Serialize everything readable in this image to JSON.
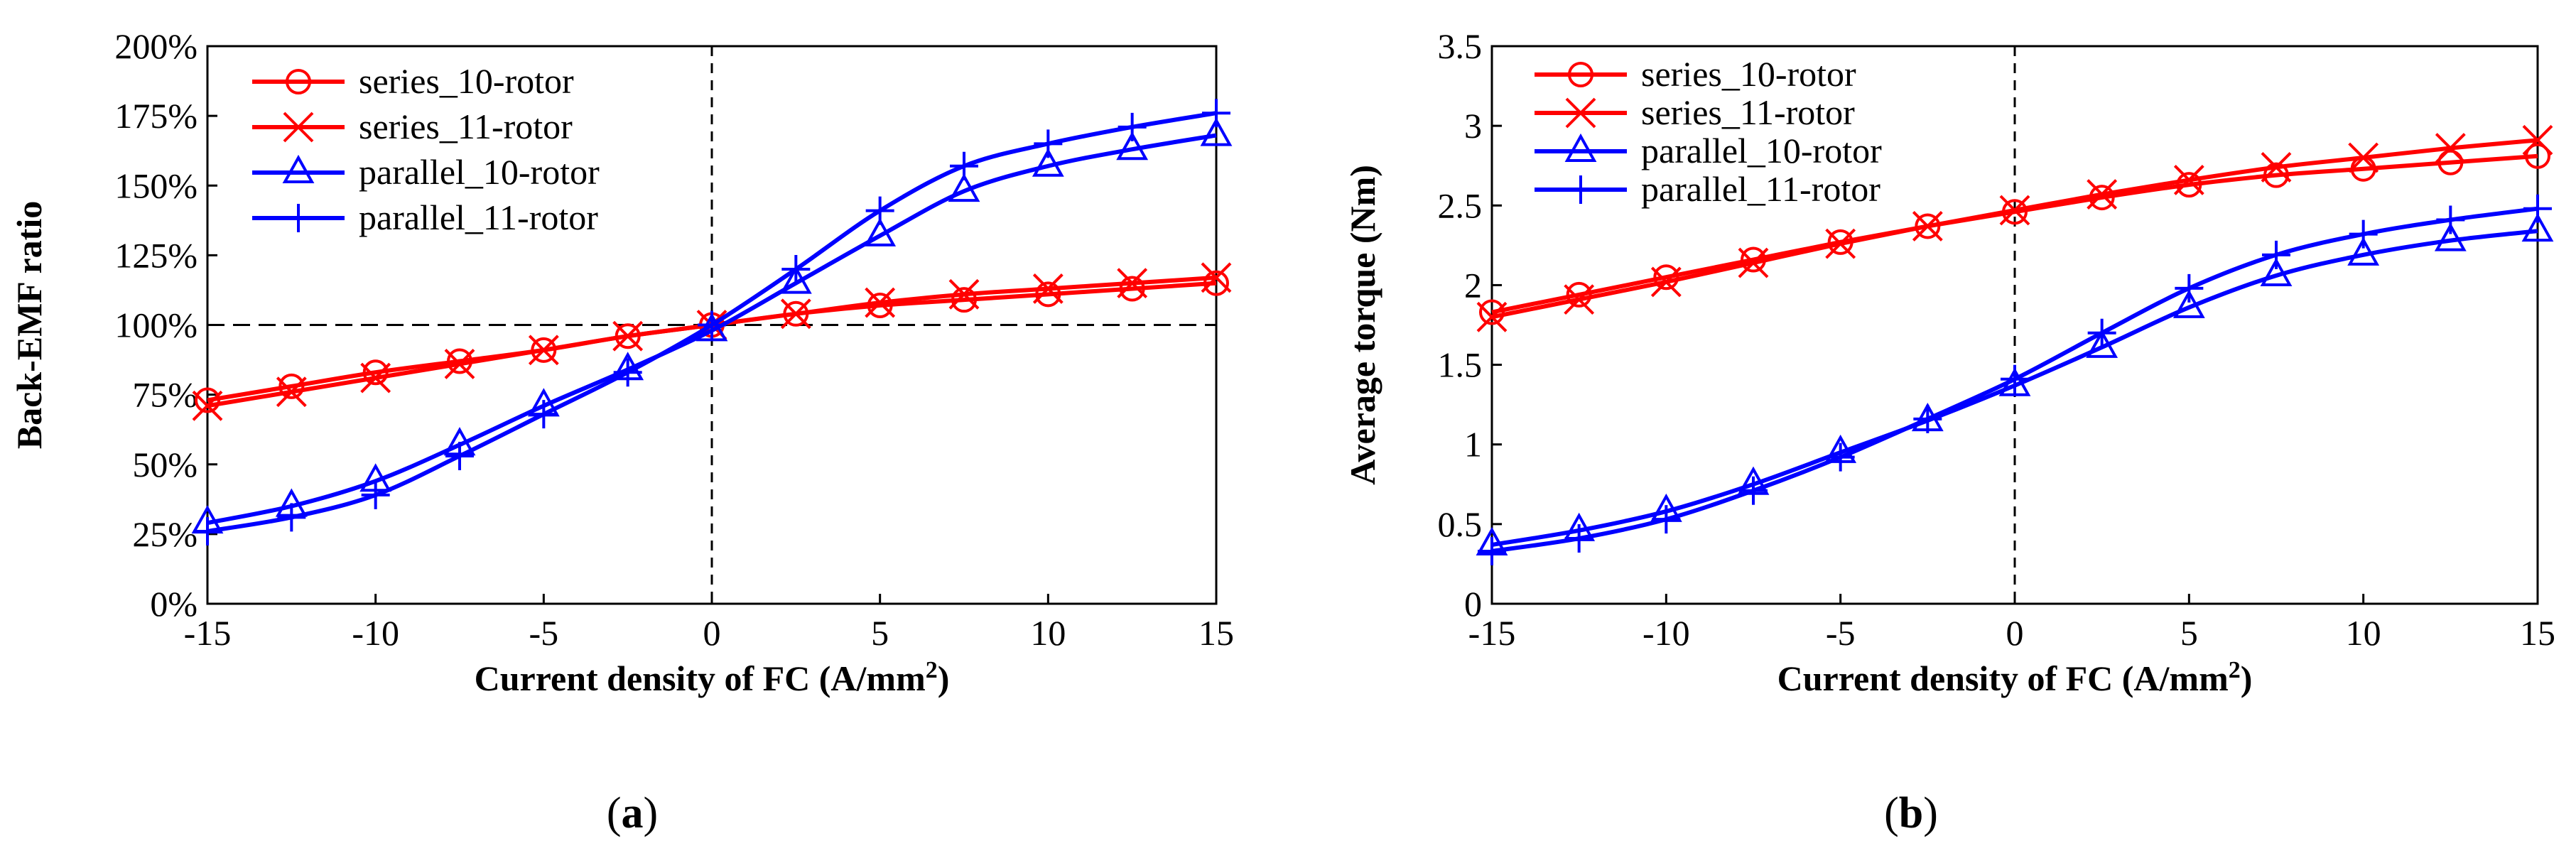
{
  "chart_data": [
    {
      "type": "line",
      "panel_label": "(a)",
      "panel_label_parts": [
        "(",
        "a",
        ")"
      ],
      "xlabel": "Current density of FC (A/mm²)",
      "ylabel": "Back-EMF ratio",
      "xlim": [
        -15,
        15
      ],
      "ylim": [
        0,
        200
      ],
      "x_ticks": [
        -15,
        -10,
        -5,
        0,
        5,
        10,
        15
      ],
      "y_ticks": [
        0,
        25,
        50,
        75,
        100,
        125,
        150,
        175,
        200
      ],
      "y_tick_labels": [
        "0%",
        "25%",
        "50%",
        "75%",
        "100%",
        "125%",
        "150%",
        "175%",
        "200%"
      ],
      "grid": false,
      "reference_lines": {
        "x": 0,
        "y": 100
      },
      "legend_position": "top-left",
      "x": [
        -15,
        -12.5,
        -10,
        -7.5,
        -5,
        -2.5,
        0,
        2.5,
        5,
        7.5,
        10,
        12.5,
        15
      ],
      "series": [
        {
          "name": "series_10-rotor",
          "color": "#ff0000",
          "marker": "circle",
          "values": [
            73,
            78,
            83,
            87,
            91,
            96,
            100,
            104,
            107,
            109,
            111,
            113,
            115
          ]
        },
        {
          "name": "series_11-rotor",
          "color": "#ff0000",
          "marker": "x",
          "values": [
            71,
            76,
            81,
            86,
            91,
            96,
            100,
            104,
            108,
            111,
            113,
            115,
            117
          ]
        },
        {
          "name": "parallel_10-rotor",
          "color": "#0000ff",
          "marker": "triangle",
          "values": [
            29,
            35,
            44,
            57,
            71,
            84,
            98,
            115,
            132,
            148,
            157,
            163,
            168
          ]
        },
        {
          "name": "parallel_11-rotor",
          "color": "#0000ff",
          "marker": "plus",
          "values": [
            26,
            31,
            39,
            53,
            68,
            83,
            100,
            120,
            141,
            157,
            165,
            171,
            176
          ]
        }
      ]
    },
    {
      "type": "line",
      "panel_label": "(b)",
      "panel_label_parts": [
        "(",
        "b",
        ")"
      ],
      "xlabel": "Current density of FC (A/mm²)",
      "ylabel": "Average torque (Nm)",
      "xlim": [
        -15,
        15
      ],
      "ylim": [
        0,
        3.5
      ],
      "x_ticks": [
        -15,
        -10,
        -5,
        0,
        5,
        10,
        15
      ],
      "y_ticks": [
        0,
        0.5,
        1,
        1.5,
        2,
        2.5,
        3,
        3.5
      ],
      "y_tick_labels": [
        "0",
        "0.5",
        "1",
        "1.5",
        "2",
        "2.5",
        "3",
        "3.5"
      ],
      "grid": false,
      "reference_lines": {
        "x": 0
      },
      "legend_position": "top-left",
      "x": [
        -15,
        -12.5,
        -10,
        -7.5,
        -5,
        -2.5,
        0,
        2.5,
        5,
        7.5,
        10,
        12.5,
        15
      ],
      "series": [
        {
          "name": "series_10-rotor",
          "color": "#ff0000",
          "marker": "circle",
          "values": [
            1.83,
            1.94,
            2.05,
            2.16,
            2.27,
            2.37,
            2.46,
            2.55,
            2.63,
            2.69,
            2.73,
            2.77,
            2.81
          ]
        },
        {
          "name": "series_11-rotor",
          "color": "#ff0000",
          "marker": "x",
          "values": [
            1.8,
            1.91,
            2.02,
            2.14,
            2.26,
            2.37,
            2.47,
            2.57,
            2.66,
            2.74,
            2.8,
            2.86,
            2.91
          ]
        },
        {
          "name": "parallel_10-rotor",
          "color": "#0000ff",
          "marker": "triangle",
          "values": [
            0.37,
            0.46,
            0.58,
            0.75,
            0.95,
            1.15,
            1.37,
            1.61,
            1.86,
            2.06,
            2.19,
            2.28,
            2.34
          ]
        },
        {
          "name": "parallel_11-rotor",
          "color": "#0000ff",
          "marker": "plus",
          "values": [
            0.33,
            0.41,
            0.53,
            0.71,
            0.92,
            1.16,
            1.41,
            1.7,
            1.98,
            2.19,
            2.32,
            2.41,
            2.48
          ]
        }
      ]
    }
  ]
}
